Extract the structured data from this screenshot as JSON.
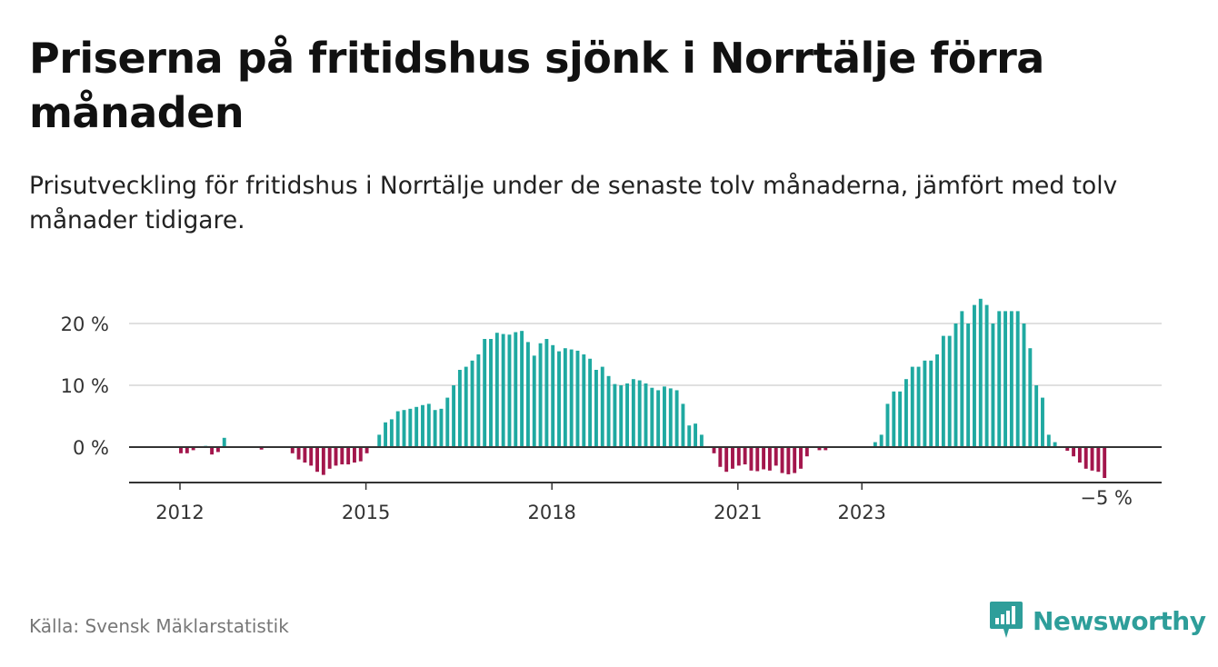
{
  "title": "Priserna på fritidshus sjönk i Norrtälje förra månaden",
  "subtitle": "Prisutveckling för fritidshus i Norrtälje under de senaste tolv månaderna, jämfört med tolv månader tidigare.",
  "source": "Källa: Svensk Mäklarstatistik",
  "brand": {
    "name": "Newsworthy",
    "icon": "newsworthy-logo-icon"
  },
  "colors": {
    "positive": "#1fa9a1",
    "negative": "#a3164c",
    "grid": "#d6d6d6",
    "axis": "#333333",
    "brand": "#2e9e9a"
  },
  "chart_data": {
    "type": "bar",
    "ylabel": "",
    "ylim": [
      -6,
      25
    ],
    "y_ticks": [
      {
        "value": 0,
        "label": "0 %"
      },
      {
        "value": 10,
        "label": "10 %"
      },
      {
        "value": 20,
        "label": "20 %"
      }
    ],
    "x_ticks": [
      {
        "index": 0,
        "label": "2012"
      },
      {
        "index": 30,
        "label": "2015"
      },
      {
        "index": 60,
        "label": "2018"
      },
      {
        "index": 90,
        "label": "2021"
      },
      {
        "index": 110,
        "label": "2023"
      }
    ],
    "last_value_label": "−5 %",
    "values": [
      -1,
      -1,
      -0.5,
      0,
      0.2,
      -1.2,
      -0.8,
      1.5,
      0,
      0,
      0,
      0,
      0,
      -0.4,
      0,
      0,
      0,
      0,
      -1,
      -2,
      -2.5,
      -3,
      -4,
      -4.5,
      -3.5,
      -3,
      -2.8,
      -2.8,
      -2.5,
      -2.3,
      -1,
      0,
      2,
      4,
      4.5,
      5.8,
      6,
      6.2,
      6.5,
      6.8,
      7,
      6,
      6.2,
      8,
      10,
      12.5,
      13,
      14,
      15,
      17.5,
      17.5,
      18.5,
      18.3,
      18.2,
      18.6,
      18.8,
      17,
      14.8,
      16.8,
      17.5,
      16.5,
      15.5,
      16,
      15.8,
      15.6,
      15,
      14.3,
      12.5,
      13,
      11.5,
      10.2,
      10,
      10.3,
      11,
      10.8,
      10.3,
      9.6,
      9.2,
      9.8,
      9.5,
      9.2,
      7,
      3.5,
      3.8,
      2,
      0,
      -1,
      -3.2,
      -4,
      -3.5,
      -3,
      -2.8,
      -3.8,
      -3.9,
      -3.6,
      -3.8,
      -3,
      -4.2,
      -4.4,
      -4.2,
      -3.5,
      -1.5,
      0,
      -0.5,
      -0.5,
      0,
      0,
      0,
      0,
      0,
      0,
      0,
      0.8,
      2,
      7,
      9,
      9,
      11,
      13,
      13,
      14,
      14,
      15,
      18,
      18,
      20,
      22,
      20,
      23,
      24,
      23,
      20,
      22,
      22,
      22,
      22,
      20,
      16,
      10,
      8,
      2,
      0.8,
      0,
      -0.6,
      -1.5,
      -2.5,
      -3.5,
      -3.8,
      -4,
      -5
    ]
  }
}
